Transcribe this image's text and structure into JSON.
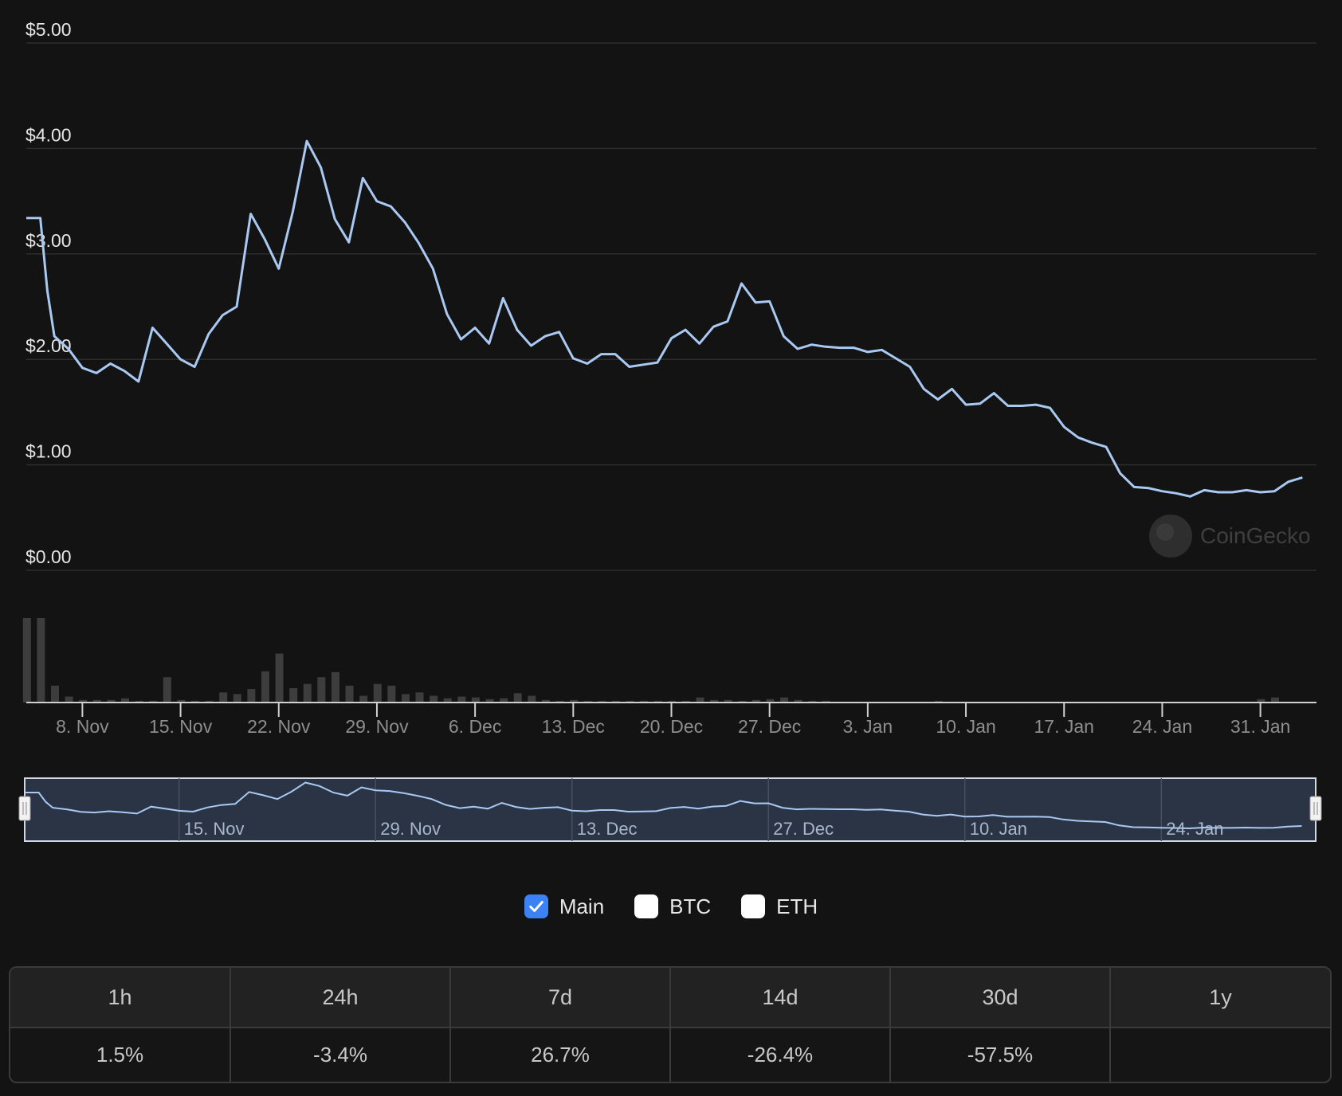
{
  "chart_data": {
    "type": "line",
    "ylabels": [
      "$5.00",
      "$4.00",
      "$3.00",
      "$2.00",
      "$1.00",
      "$0.00"
    ],
    "yticks": [
      5,
      4,
      3,
      2,
      1,
      0
    ],
    "ylim": [
      0,
      5
    ],
    "xlim": [
      "2021-11-04",
      "2022-02-04"
    ],
    "x_ticks": [
      {
        "label": "8. Nov",
        "date": "2021-11-08"
      },
      {
        "label": "15. Nov",
        "date": "2021-11-15"
      },
      {
        "label": "22. Nov",
        "date": "2021-11-22"
      },
      {
        "label": "29. Nov",
        "date": "2021-11-29"
      },
      {
        "label": "6. Dec",
        "date": "2021-12-06"
      },
      {
        "label": "13. Dec",
        "date": "2021-12-13"
      },
      {
        "label": "20. Dec",
        "date": "2021-12-20"
      },
      {
        "label": "27. Dec",
        "date": "2021-12-27"
      },
      {
        "label": "3. Jan",
        "date": "2022-01-03"
      },
      {
        "label": "10. Jan",
        "date": "2022-01-10"
      },
      {
        "label": "17. Jan",
        "date": "2022-01-17"
      },
      {
        "label": "24. Jan",
        "date": "2022-01-24"
      },
      {
        "label": "31. Jan",
        "date": "2022-01-31"
      }
    ],
    "navigator_ticks": [
      {
        "label": "15. Nov",
        "date": "2021-11-15"
      },
      {
        "label": "29. Nov",
        "date": "2021-11-29"
      },
      {
        "label": "13. Dec",
        "date": "2021-12-13"
      },
      {
        "label": "27. Dec",
        "date": "2021-12-27"
      },
      {
        "label": "10. Jan",
        "date": "2022-01-10"
      },
      {
        "label": "24. Jan",
        "date": "2022-01-24"
      }
    ],
    "series": [
      {
        "type": "line",
        "color": "#a9c9f2",
        "points": [
          [
            "2021-11-04",
            3.34
          ],
          [
            "2021-11-05",
            3.34
          ],
          [
            "2021-11-05 12:00",
            2.65
          ],
          [
            "2021-11-06",
            2.22
          ],
          [
            "2021-11-07",
            2.1
          ],
          [
            "2021-11-08",
            1.92
          ],
          [
            "2021-11-09",
            1.87
          ],
          [
            "2021-11-10",
            1.96
          ],
          [
            "2021-11-11",
            1.89
          ],
          [
            "2021-11-12",
            1.79
          ],
          [
            "2021-11-13",
            2.3
          ],
          [
            "2021-11-14",
            2.15
          ],
          [
            "2021-11-15",
            2.0
          ],
          [
            "2021-11-16",
            1.93
          ],
          [
            "2021-11-17",
            2.24
          ],
          [
            "2021-11-18",
            2.42
          ],
          [
            "2021-11-19",
            2.5
          ],
          [
            "2021-11-20",
            3.38
          ],
          [
            "2021-11-21",
            3.14
          ],
          [
            "2021-11-22",
            2.86
          ],
          [
            "2021-11-23",
            3.4
          ],
          [
            "2021-11-24",
            4.07
          ],
          [
            "2021-11-25",
            3.82
          ],
          [
            "2021-11-26",
            3.33
          ],
          [
            "2021-11-27",
            3.11
          ],
          [
            "2021-11-28",
            3.72
          ],
          [
            "2021-11-29",
            3.5
          ],
          [
            "2021-11-30",
            3.45
          ],
          [
            "2021-12-01",
            3.3
          ],
          [
            "2021-12-02",
            3.1
          ],
          [
            "2021-12-03",
            2.86
          ],
          [
            "2021-12-04",
            2.43
          ],
          [
            "2021-12-05",
            2.19
          ],
          [
            "2021-12-06",
            2.3
          ],
          [
            "2021-12-07",
            2.15
          ],
          [
            "2021-12-08",
            2.58
          ],
          [
            "2021-12-09",
            2.28
          ],
          [
            "2021-12-10",
            2.13
          ],
          [
            "2021-12-11",
            2.22
          ],
          [
            "2021-12-12",
            2.26
          ],
          [
            "2021-12-13",
            2.01
          ],
          [
            "2021-12-14",
            1.96
          ],
          [
            "2021-12-15",
            2.05
          ],
          [
            "2021-12-16",
            2.05
          ],
          [
            "2021-12-17",
            1.93
          ],
          [
            "2021-12-18",
            1.95
          ],
          [
            "2021-12-19",
            1.97
          ],
          [
            "2021-12-20",
            2.2
          ],
          [
            "2021-12-21",
            2.28
          ],
          [
            "2021-12-22",
            2.15
          ],
          [
            "2021-12-23",
            2.31
          ],
          [
            "2021-12-24",
            2.36
          ],
          [
            "2021-12-25",
            2.72
          ],
          [
            "2021-12-26",
            2.54
          ],
          [
            "2021-12-27",
            2.55
          ],
          [
            "2021-12-28",
            2.22
          ],
          [
            "2021-12-29",
            2.1
          ],
          [
            "2021-12-30",
            2.14
          ],
          [
            "2021-12-31",
            2.12
          ],
          [
            "2022-01-01",
            2.11
          ],
          [
            "2022-01-02",
            2.11
          ],
          [
            "2022-01-03",
            2.07
          ],
          [
            "2022-01-04",
            2.09
          ],
          [
            "2022-01-05",
            2.01
          ],
          [
            "2022-01-06",
            1.93
          ],
          [
            "2022-01-07",
            1.72
          ],
          [
            "2022-01-08",
            1.62
          ],
          [
            "2022-01-09",
            1.72
          ],
          [
            "2022-01-10",
            1.57
          ],
          [
            "2022-01-11",
            1.58
          ],
          [
            "2022-01-12",
            1.68
          ],
          [
            "2022-01-13",
            1.56
          ],
          [
            "2022-01-14",
            1.56
          ],
          [
            "2022-01-15",
            1.57
          ],
          [
            "2022-01-16",
            1.54
          ],
          [
            "2022-01-17",
            1.36
          ],
          [
            "2022-01-18",
            1.26
          ],
          [
            "2022-01-19",
            1.21
          ],
          [
            "2022-01-20",
            1.17
          ],
          [
            "2022-01-21",
            0.92
          ],
          [
            "2022-01-22",
            0.79
          ],
          [
            "2022-01-23",
            0.78
          ],
          [
            "2022-01-24",
            0.75
          ],
          [
            "2022-01-25",
            0.73
          ],
          [
            "2022-01-26",
            0.7
          ],
          [
            "2022-01-27",
            0.76
          ],
          [
            "2022-01-28",
            0.74
          ],
          [
            "2022-01-29",
            0.74
          ],
          [
            "2022-01-30",
            0.76
          ],
          [
            "2022-01-31",
            0.74
          ],
          [
            "2022-02-01",
            0.75
          ],
          [
            "2022-02-02",
            0.84
          ],
          [
            "2022-02-03",
            0.88
          ]
        ]
      },
      {
        "type": "bar",
        "color": "#3d3d3d",
        "ylim": [
          0,
          1
        ],
        "values": [
          1.0,
          1.0,
          0.2,
          0.07,
          0.03,
          0.03,
          0.03,
          0.05,
          0.02,
          0.02,
          0.3,
          0.03,
          0.02,
          0.02,
          0.12,
          0.1,
          0.16,
          0.37,
          0.58,
          0.17,
          0.22,
          0.3,
          0.36,
          0.2,
          0.08,
          0.22,
          0.2,
          0.1,
          0.12,
          0.08,
          0.05,
          0.07,
          0.06,
          0.04,
          0.05,
          0.11,
          0.08,
          0.03,
          0.02,
          0.03,
          0.02,
          0.02,
          0.02,
          0.02,
          0.02,
          0.02,
          0.02,
          0.02,
          0.06,
          0.03,
          0.03,
          0.02,
          0.03,
          0.04,
          0.06,
          0.03,
          0.02,
          0.02,
          0.01,
          0.01,
          0.01,
          0.01,
          0.01,
          0.01,
          0.01,
          0.02,
          0.01,
          0.01,
          0.01,
          0.01,
          0.01,
          0.01,
          0.01,
          0.01,
          0.01,
          0.01,
          0.01,
          0.01,
          0.01,
          0.01,
          0.01,
          0.01,
          0.01,
          0.01,
          0.01,
          0.01,
          0.01,
          0.01,
          0.04,
          0.06
        ]
      }
    ]
  },
  "watermark": "CoinGecko",
  "legend": [
    {
      "label": "Main",
      "checked": true
    },
    {
      "label": "BTC",
      "checked": false
    },
    {
      "label": "ETH",
      "checked": false
    }
  ],
  "stats": {
    "headers": [
      "1h",
      "24h",
      "7d",
      "14d",
      "30d",
      "1y"
    ],
    "values": [
      "1.5%",
      "-3.4%",
      "26.7%",
      "-26.4%",
      "-57.5%",
      ""
    ]
  }
}
